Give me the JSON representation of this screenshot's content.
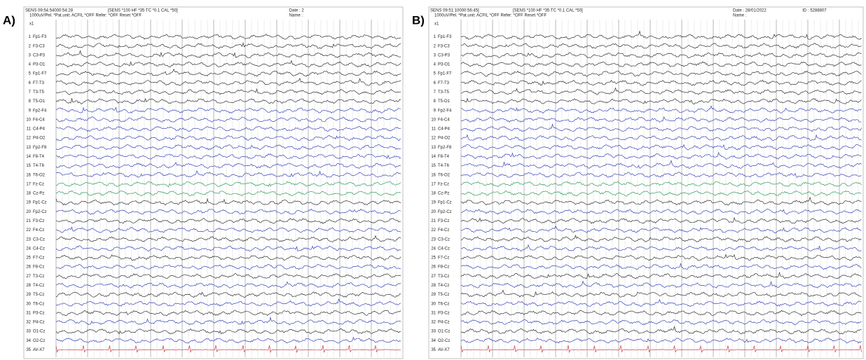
{
  "panels": [
    {
      "label": "A)",
      "header": {
        "sens": "SENS 09:54:54000:54:28",
        "settings": "[SENS *100 HF *35 TC *0.1 CAL *50]",
        "date": "Date : 2",
        "line2": "1000uV/Pel. *Pat.unit: ACFIL *OFF Refer: *OFF Reset *OFF",
        "name": "Name :"
      },
      "scale": "x1"
    },
    {
      "label": "B)",
      "header": {
        "sens": "SENS 09:51:10000:56:45]",
        "settings": "[SENS *100 HF *35 TC *0.1 CAL *50]",
        "date": "Date : 28/01/2022",
        "id": "ID : 5288807",
        "line2": "1000uV/Pel. *Pat.unit: ACFIL *OFF Refer: *OFF Reset *OFF",
        "name": "Name :"
      },
      "scale": "x1"
    }
  ],
  "channels": [
    {
      "number": 1,
      "label": "Fp1-F3"
    },
    {
      "number": 2,
      "label": "F3-C3"
    },
    {
      "number": 3,
      "label": "C3-P3"
    },
    {
      "number": 4,
      "label": "P3-O1"
    },
    {
      "number": 5,
      "label": "Fp1-F7"
    },
    {
      "number": 6,
      "label": "F7-T3"
    },
    {
      "number": 7,
      "label": "T3-T5"
    },
    {
      "number": 8,
      "label": "T5-O1"
    },
    {
      "number": 9,
      "label": "Fp2-F4"
    },
    {
      "number": 10,
      "label": "F4-C4"
    },
    {
      "number": 11,
      "label": "C4-P4"
    },
    {
      "number": 12,
      "label": "P4-O2"
    },
    {
      "number": 13,
      "label": "Fp2-F8"
    },
    {
      "number": 14,
      "label": "F8-T4"
    },
    {
      "number": 15,
      "label": "T4-T6"
    },
    {
      "number": 16,
      "label": "T6-O2"
    },
    {
      "number": 17,
      "label": "Fz-Cz"
    },
    {
      "number": 18,
      "label": "Cz-Pz"
    },
    {
      "number": 19,
      "label": "Fp1-Cz"
    },
    {
      "number": 20,
      "label": "Fp2-Cz"
    },
    {
      "number": 21,
      "label": "F3-Cz"
    },
    {
      "number": 22,
      "label": "F4-Cz"
    },
    {
      "number": 23,
      "label": "C3-Cz"
    },
    {
      "number": 24,
      "label": "C4-Cz"
    },
    {
      "number": 25,
      "label": "F7-Cz"
    },
    {
      "number": 26,
      "label": "F8-Cz"
    },
    {
      "number": 27,
      "label": "T3-Cz"
    },
    {
      "number": 28,
      "label": "T4-Cz"
    },
    {
      "number": 29,
      "label": "T5-Cz"
    },
    {
      "number": 30,
      "label": "T6-Cz"
    },
    {
      "number": 31,
      "label": "P3-Cz"
    },
    {
      "number": 32,
      "label": "P4-Cz"
    },
    {
      "number": 33,
      "label": "O1-Cz"
    },
    {
      "number": 34,
      "label": "O2-Cz"
    },
    {
      "number": 35,
      "label": "AV-X7"
    }
  ]
}
